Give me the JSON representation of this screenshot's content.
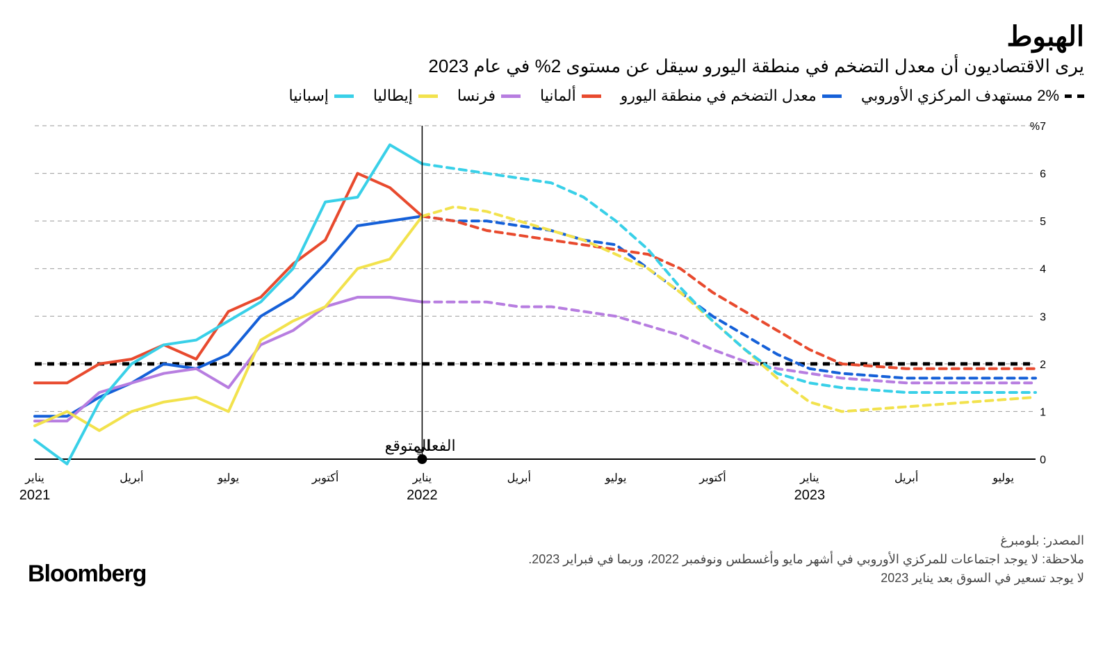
{
  "title": "الهبوط",
  "subtitle": "يرى الاقتصاديون أن معدل التضخم في منطقة اليورو سيقل عن مستوى 2% في عام 2023",
  "legend": [
    {
      "label": "2% مستهدف المركزي الأوروبي",
      "color": "#000000",
      "dashed": true
    },
    {
      "label": "معدل التضخم في منطقة اليورو",
      "color": "#1560d8",
      "dashed": false
    },
    {
      "label": "ألمانيا",
      "color": "#e84a2e",
      "dashed": false
    },
    {
      "label": "فرنسا",
      "color": "#b77de0",
      "dashed": false
    },
    {
      "label": "إيطاليا",
      "color": "#f2e24d",
      "dashed": false
    },
    {
      "label": "إسبانيا",
      "color": "#39d0e8",
      "dashed": false
    }
  ],
  "chart": {
    "type": "line",
    "background_color": "#ffffff",
    "grid_color": "#999999",
    "line_width": 4,
    "forecast_dash": "10 8",
    "y": {
      "min": 0,
      "max": 7,
      "ticks": [
        0,
        1,
        2,
        3,
        4,
        5,
        6,
        7
      ],
      "suffix_on_top": "%7",
      "labels": [
        "0",
        "1",
        "2",
        "3",
        "4",
        "5",
        "6",
        "%7"
      ]
    },
    "x": {
      "count": 32,
      "divider_index": 12,
      "ticks": [
        {
          "i": 0,
          "label": "يناير",
          "year": "2021"
        },
        {
          "i": 3,
          "label": "أبريل"
        },
        {
          "i": 6,
          "label": "يوليو"
        },
        {
          "i": 9,
          "label": "أكتوبر"
        },
        {
          "i": 12,
          "label": "يناير",
          "year": "2022"
        },
        {
          "i": 15,
          "label": "أبريل"
        },
        {
          "i": 18,
          "label": "يوليو"
        },
        {
          "i": 21,
          "label": "أكتوبر"
        },
        {
          "i": 24,
          "label": "يناير",
          "year": "2023"
        },
        {
          "i": 27,
          "label": "أبريل"
        },
        {
          "i": 30,
          "label": "يوليو"
        }
      ]
    },
    "divider_labels": {
      "left": "الفعلي",
      "right": "المتوقع"
    },
    "target_value": 2,
    "series": [
      {
        "name": "euroarea",
        "color": "#1560d8",
        "actual": [
          0.9,
          0.9,
          1.3,
          1.6,
          2.0,
          1.9,
          2.2,
          3.0,
          3.4,
          4.1,
          4.9,
          5.0,
          5.1
        ],
        "forecast": [
          5.1,
          5.0,
          5.0,
          4.9,
          4.8,
          4.6,
          4.5,
          4.0,
          3.5,
          3.0,
          2.6,
          2.2,
          1.9,
          1.8,
          1.75,
          1.7,
          1.7,
          1.7,
          1.7,
          1.7
        ]
      },
      {
        "name": "germany",
        "color": "#e84a2e",
        "actual": [
          1.6,
          1.6,
          2.0,
          2.1,
          2.4,
          2.1,
          3.1,
          3.4,
          4.1,
          4.6,
          6.0,
          5.7,
          5.1
        ],
        "forecast": [
          5.1,
          5.0,
          4.8,
          4.7,
          4.6,
          4.5,
          4.4,
          4.3,
          4.0,
          3.5,
          3.1,
          2.7,
          2.3,
          2.0,
          1.95,
          1.9,
          1.9,
          1.9,
          1.9,
          1.9
        ]
      },
      {
        "name": "france",
        "color": "#b77de0",
        "actual": [
          0.8,
          0.8,
          1.4,
          1.6,
          1.8,
          1.9,
          1.5,
          2.4,
          2.7,
          3.2,
          3.4,
          3.4,
          3.3
        ],
        "forecast": [
          3.3,
          3.3,
          3.3,
          3.2,
          3.2,
          3.1,
          3.0,
          2.8,
          2.6,
          2.3,
          2.05,
          1.9,
          1.8,
          1.7,
          1.65,
          1.6,
          1.6,
          1.6,
          1.6,
          1.6
        ]
      },
      {
        "name": "italy",
        "color": "#f2e24d",
        "actual": [
          0.7,
          1.0,
          0.6,
          1.0,
          1.2,
          1.3,
          1.0,
          2.5,
          2.9,
          3.2,
          4.0,
          4.2,
          5.1
        ],
        "forecast": [
          5.1,
          5.3,
          5.2,
          5.0,
          4.8,
          4.6,
          4.3,
          4.0,
          3.5,
          2.9,
          2.3,
          1.7,
          1.2,
          1.0,
          1.05,
          1.1,
          1.15,
          1.2,
          1.25,
          1.3
        ]
      },
      {
        "name": "spain",
        "color": "#39d0e8",
        "actual": [
          0.4,
          -0.1,
          1.2,
          2.0,
          2.4,
          2.5,
          2.9,
          3.3,
          4.0,
          5.4,
          5.5,
          6.6,
          6.2
        ],
        "forecast": [
          6.2,
          6.1,
          6.0,
          5.9,
          5.8,
          5.5,
          5.0,
          4.4,
          3.6,
          2.9,
          2.3,
          1.8,
          1.6,
          1.5,
          1.45,
          1.4,
          1.4,
          1.4,
          1.4,
          1.4
        ]
      }
    ]
  },
  "footer": {
    "source": "المصدر: بلومبرغ",
    "note1": "ملاحظة: لا يوجد اجتماعات للمركزي الأوروبي في أشهر مايو وأغسطس ونوفمبر 2022، وربما في فبراير 2023.",
    "note2": "لا يوجد تسعير في السوق بعد يناير 2023",
    "brand": "Bloomberg"
  }
}
